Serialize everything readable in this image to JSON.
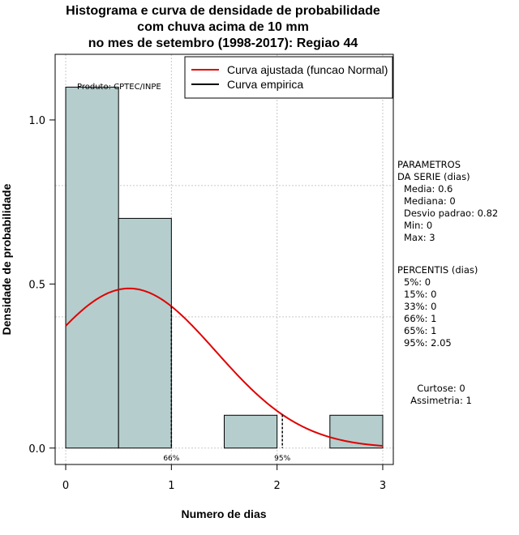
{
  "title": {
    "line1": "Histograma e curva de densidade de probabilidade",
    "line2": "com chuva acima de 10 mm",
    "line3": "no mes de setembro (1998-2017): Regiao 44"
  },
  "credit": "Produto: CPTEC/INPE",
  "colors": {
    "bar_fill": "#b5cdcd",
    "normal_curve": "#e00000",
    "empirical": "#000000",
    "grid": "#c8c8c8"
  },
  "chart_data": {
    "type": "bar",
    "xlabel": "Numero de dias",
    "ylabel": "Densidade de probabilidade",
    "xlim": [
      -0.1,
      3.1
    ],
    "ylim": [
      -0.05,
      1.2
    ],
    "x_ticks": [
      0,
      1,
      2,
      3
    ],
    "y_ticks": [
      0.0,
      0.5,
      1.0
    ],
    "y_tick_labels": [
      "0.0",
      "0.5",
      "1.0"
    ],
    "grid": true,
    "legend_position": "top-right",
    "legend": [
      "Curva ajustada (funcao Normal)",
      "Curva empirica"
    ],
    "bins": [
      {
        "from": 0.0,
        "to": 0.5,
        "density": 1.1
      },
      {
        "from": 0.5,
        "to": 1.0,
        "density": 0.7
      },
      {
        "from": 1.0,
        "to": 1.5,
        "density": 0.0
      },
      {
        "from": 1.5,
        "to": 2.0,
        "density": 0.1
      },
      {
        "from": 2.0,
        "to": 2.5,
        "density": 0.0
      },
      {
        "from": 2.5,
        "to": 3.0,
        "density": 0.1
      }
    ],
    "normal_fit": {
      "mean": 0.6,
      "sd": 0.82
    },
    "percentile_markers": [
      {
        "label": "66%",
        "x": 1.0
      },
      {
        "label": "95%",
        "x": 2.05
      }
    ]
  },
  "parametros": {
    "heading1": "PARAMETROS",
    "heading2": "DA SERIE (dias)",
    "items": [
      "Media: 0.6",
      "Mediana: 0",
      "Desvio padrao: 0.82",
      "Min: 0",
      "Max: 3"
    ]
  },
  "percentis": {
    "heading": "PERCENTIS (dias)",
    "items": [
      "5%: 0",
      "15%: 0",
      "33%: 0",
      "66%: 1",
      "65%: 1",
      "95%: 2.05"
    ]
  },
  "shape": {
    "curtose": "Curtose: 0",
    "assimetria": "Assimetria: 1"
  }
}
